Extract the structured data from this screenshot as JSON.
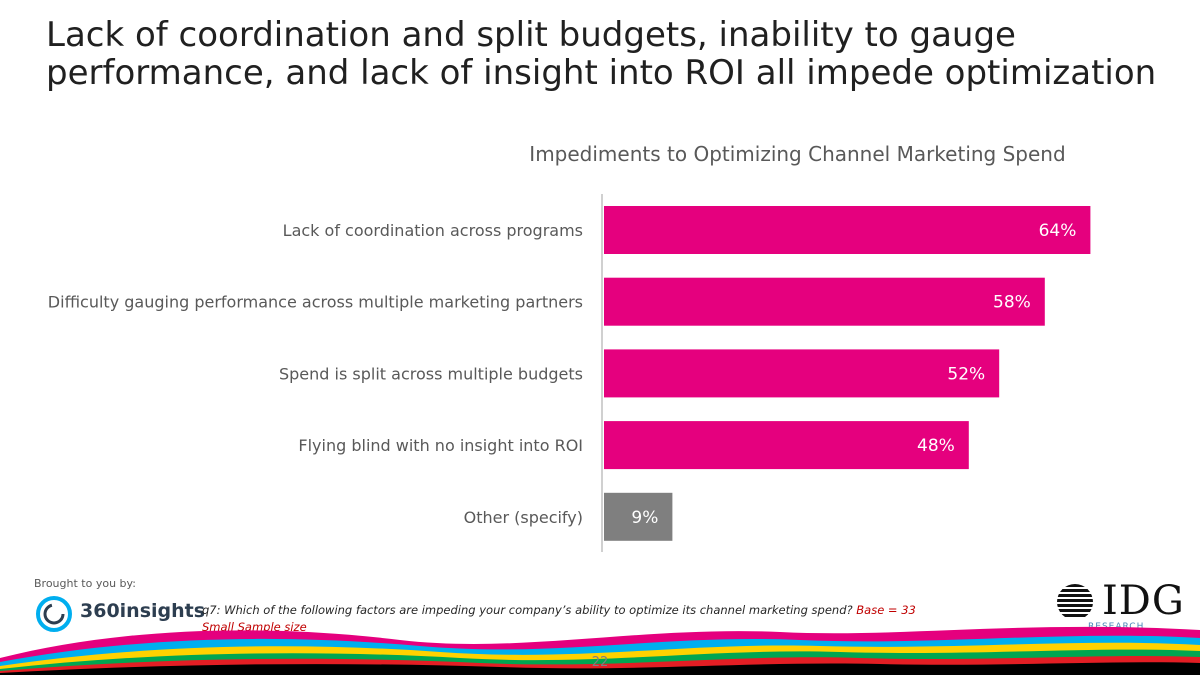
{
  "slide": {
    "title_lines": [
      "Lack of coordination and split budgets, inability to gauge",
      "performance, and lack of insight into ROI all impede optimization"
    ],
    "page_number": "22"
  },
  "chart_data": {
    "type": "bar",
    "orientation": "horizontal",
    "title": "Impediments to Optimizing Channel Marketing Spend",
    "categories": [
      "Lack of coordination across programs",
      "Difficulty gauging performance across multiple marketing partners",
      "Spend is split across multiple budgets",
      "Flying blind with no insight into ROI",
      "Other (specify)"
    ],
    "values": [
      64,
      58,
      52,
      48,
      9
    ],
    "value_labels": [
      "64%",
      "58%",
      "52%",
      "48%",
      "9%"
    ],
    "bar_colors": [
      "#e5007e",
      "#e5007e",
      "#e5007e",
      "#e5007e",
      "#7f7f7f"
    ],
    "unit": "%",
    "xlim": [
      0,
      100
    ],
    "xlabel": "",
    "ylabel": "",
    "grid": false,
    "legend": "none"
  },
  "footer": {
    "brought_by": "Brought to you by:",
    "sponsor_logo_text": "360insights",
    "question": "q7: Which of the following factors are impeding your company’s ability to optimize its channel marketing spend?",
    "base": "Base = 33 Small Sample size",
    "publisher_logo_text": "IDG",
    "publisher_logo_sub": "RESEARCH"
  },
  "colors": {
    "accent": "#e5007e",
    "neutral_bar": "#7f7f7f",
    "wave_colors": [
      "#e5007e",
      "#00aeef",
      "#ffd200",
      "#00a651",
      "#e31e24",
      "#000000"
    ]
  }
}
